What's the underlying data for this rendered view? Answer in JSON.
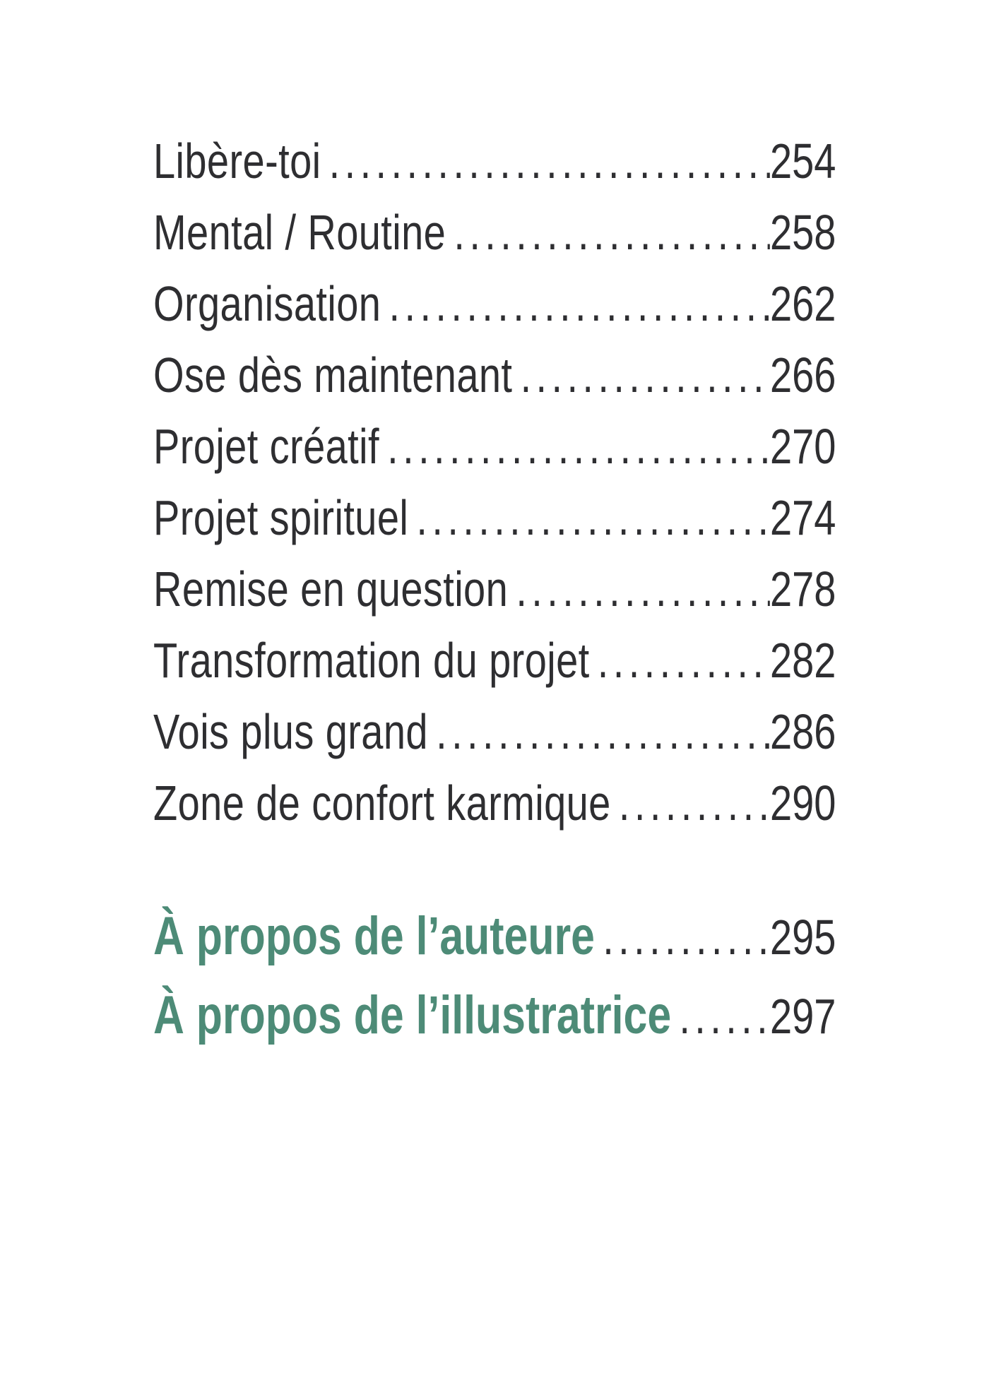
{
  "page": {
    "background": "#ffffff",
    "text_color": "#2e2e31",
    "accent_color": "#4d8b77"
  },
  "toc": {
    "entries": [
      {
        "label": "Libère-toi",
        "page": "254"
      },
      {
        "label": "Mental / Routine",
        "page": "258"
      },
      {
        "label": "Organisation",
        "page": "262"
      },
      {
        "label": "Ose dès maintenant",
        "page": "266"
      },
      {
        "label": "Projet créatif",
        "page": "270"
      },
      {
        "label": "Projet spirituel",
        "page": "274"
      },
      {
        "label": "Remise en question",
        "page": "278"
      },
      {
        "label": "Transformation du projet",
        "page": "282"
      },
      {
        "label": "Vois plus grand",
        "page": "286"
      },
      {
        "label": "Zone de confort karmique",
        "page": "290"
      }
    ],
    "about_entries": [
      {
        "label": "À propos de l’auteure",
        "page": "295"
      },
      {
        "label": "À propos de l’illustratrice",
        "page": "297"
      }
    ]
  }
}
